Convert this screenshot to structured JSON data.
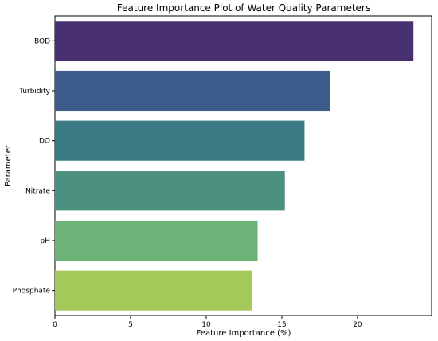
{
  "chart_data": {
    "type": "bar",
    "orientation": "horizontal",
    "title": "Feature Importance Plot of Water Quality Parameters",
    "xlabel": "Feature Importance (%)",
    "ylabel": "Parameter",
    "categories": [
      "BOD",
      "Turbidity",
      "DO",
      "Nitrate",
      "pH",
      "Phosphate"
    ],
    "values": [
      23.7,
      18.2,
      16.5,
      15.2,
      13.4,
      13.0
    ],
    "xlim": [
      0,
      24.9
    ],
    "xticks": [
      0,
      5,
      10,
      15,
      20
    ],
    "grid": false,
    "legend": "none",
    "colors": [
      "#482f70",
      "#3c5a8a",
      "#3a7b83",
      "#4c9180",
      "#6db277",
      "#a4c95a"
    ]
  }
}
